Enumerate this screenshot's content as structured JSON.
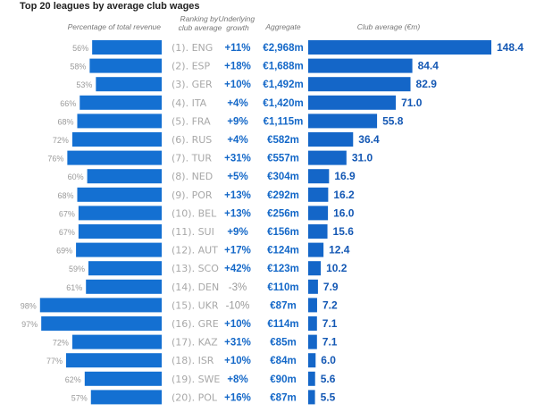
{
  "chart_data": {
    "type": "table",
    "title": "Top 20 leagues by average club wages",
    "columns": {
      "pct_revenue": "Percentage of total revenue",
      "ranking": "Ranking by club average",
      "growth": "Underlying growth",
      "aggregate": "Aggregate",
      "club_average": "Club average (€m)"
    },
    "bar_colors": {
      "pct": "#1470d2",
      "avg": "#1466c8"
    },
    "pct_max": 100,
    "avg_max": 148.4,
    "rows": [
      {
        "rank": "(1). ENG",
        "pct": 56,
        "pct_label": "56%",
        "growth": "+11%",
        "aggregate": "€2,968m",
        "avg": 148.4,
        "avg_label": "148.4"
      },
      {
        "rank": "(2). ESP",
        "pct": 58,
        "pct_label": "58%",
        "growth": "+18%",
        "aggregate": "€1,688m",
        "avg": 84.4,
        "avg_label": "84.4"
      },
      {
        "rank": "(3). GER",
        "pct": 53,
        "pct_label": "53%",
        "growth": "+10%",
        "aggregate": "€1,492m",
        "avg": 82.9,
        "avg_label": "82.9"
      },
      {
        "rank": "(4). ITA",
        "pct": 66,
        "pct_label": "66%",
        "growth": "+4%",
        "aggregate": "€1,420m",
        "avg": 71.0,
        "avg_label": "71.0"
      },
      {
        "rank": "(5). FRA",
        "pct": 68,
        "pct_label": "68%",
        "growth": "+9%",
        "aggregate": "€1,115m",
        "avg": 55.8,
        "avg_label": "55.8"
      },
      {
        "rank": "(6). RUS",
        "pct": 72,
        "pct_label": "72%",
        "growth": "+4%",
        "aggregate": "€582m",
        "avg": 36.4,
        "avg_label": "36.4"
      },
      {
        "rank": "(7). TUR",
        "pct": 76,
        "pct_label": "76%",
        "growth": "+31%",
        "aggregate": "€557m",
        "avg": 31.0,
        "avg_label": "31.0"
      },
      {
        "rank": "(8). NED",
        "pct": 60,
        "pct_label": "60%",
        "growth": "+5%",
        "aggregate": "€304m",
        "avg": 16.9,
        "avg_label": "16.9"
      },
      {
        "rank": "(9). POR",
        "pct": 68,
        "pct_label": "68%",
        "growth": "+13%",
        "aggregate": "€292m",
        "avg": 16.2,
        "avg_label": "16.2"
      },
      {
        "rank": "(10). BEL",
        "pct": 67,
        "pct_label": "67%",
        "growth": "+13%",
        "aggregate": "€256m",
        "avg": 16.0,
        "avg_label": "16.0"
      },
      {
        "rank": "(11). SUI",
        "pct": 67,
        "pct_label": "67%",
        "growth": "+9%",
        "aggregate": "€156m",
        "avg": 15.6,
        "avg_label": "15.6"
      },
      {
        "rank": "(12). AUT",
        "pct": 69,
        "pct_label": "69%",
        "growth": "+17%",
        "aggregate": "€124m",
        "avg": 12.4,
        "avg_label": "12.4"
      },
      {
        "rank": "(13). SCO",
        "pct": 59,
        "pct_label": "59%",
        "growth": "+42%",
        "aggregate": "€123m",
        "avg": 10.2,
        "avg_label": "10.2"
      },
      {
        "rank": "(14). DEN",
        "pct": 61,
        "pct_label": "61%",
        "growth": "-3%",
        "aggregate": "€110m",
        "avg": 7.9,
        "avg_label": "7.9"
      },
      {
        "rank": "(15). UKR",
        "pct": 98,
        "pct_label": "98%",
        "growth": "-10%",
        "aggregate": "€87m",
        "avg": 7.2,
        "avg_label": "7.2"
      },
      {
        "rank": "(16). GRE",
        "pct": 97,
        "pct_label": "97%",
        "growth": "+10%",
        "aggregate": "€114m",
        "avg": 7.1,
        "avg_label": "7.1"
      },
      {
        "rank": "(17). KAZ",
        "pct": 72,
        "pct_label": "72%",
        "growth": "+31%",
        "aggregate": "€85m",
        "avg": 7.1,
        "avg_label": "7.1"
      },
      {
        "rank": "(18). ISR",
        "pct": 77,
        "pct_label": "77%",
        "growth": "+10%",
        "aggregate": "€84m",
        "avg": 6.0,
        "avg_label": "6.0"
      },
      {
        "rank": "(19). SWE",
        "pct": 62,
        "pct_label": "62%",
        "growth": "+8%",
        "aggregate": "€90m",
        "avg": 5.6,
        "avg_label": "5.6"
      },
      {
        "rank": "(20). POL",
        "pct": 57,
        "pct_label": "57%",
        "growth": "+16%",
        "aggregate": "€87m",
        "avg": 5.5,
        "avg_label": "5.5"
      }
    ]
  }
}
